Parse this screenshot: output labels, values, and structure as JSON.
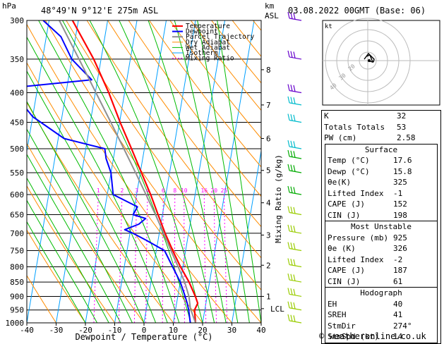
{
  "header": {
    "hpa_label": "hPa",
    "location": "48°49'N  9°12'E  275m  ASL",
    "km_label": "km",
    "asl_label": "ASL",
    "datetime": "03.08.2022  00GMT  (Base: 06)"
  },
  "colors": {
    "temperature": "#ff0000",
    "dewpoint": "#0000ff",
    "parcel": "#909090",
    "dry_adiabat": "#ff8c00",
    "wet_adiabat": "#00bb00",
    "isotherm": "#00a0ff",
    "mixing_ratio": "#ff00ff"
  },
  "legend": [
    "Temperature",
    "Dewpoint",
    "Parcel Trajectory",
    "Dry Adiabat",
    "Wet Adiabat",
    "Isotherm",
    "Mixing Ratio"
  ],
  "chart_data": {
    "type": "line",
    "xlabel": "Dewpoint / Temperature (°C)",
    "ylabel": "Mixing Ratio (g/kg)",
    "xlim": [
      -40,
      40
    ],
    "ylim": [
      1000,
      300
    ],
    "x_ticks": [
      "-40",
      "-30",
      "-20",
      "-10",
      "0",
      "10",
      "20",
      "30",
      "40"
    ],
    "pressure_levels": [
      300,
      350,
      400,
      450,
      500,
      550,
      600,
      650,
      700,
      750,
      800,
      850,
      900,
      950,
      1000
    ],
    "pressure_labels": [
      "300",
      "350",
      "400",
      "450",
      "500",
      "550",
      "600",
      "650",
      "700",
      "750",
      "800",
      "850",
      "900",
      "950",
      "1000"
    ],
    "km_ticks": [
      {
        "p": 900,
        "label": "1"
      },
      {
        "p": 795,
        "label": "2"
      },
      {
        "p": 705,
        "label": "3"
      },
      {
        "p": 620,
        "label": "4"
      },
      {
        "p": 545,
        "label": "5"
      },
      {
        "p": 480,
        "label": "6"
      },
      {
        "p": 420,
        "label": "7"
      },
      {
        "p": 365,
        "label": "8"
      }
    ],
    "lcl": {
      "p": 945,
      "label": "LCL"
    },
    "mixing_ratio_labels": [
      {
        "w": 1,
        "label": "1"
      },
      {
        "w": 2,
        "label": "2"
      },
      {
        "w": 3,
        "label": "3"
      },
      {
        "w": 4,
        "label": "4"
      },
      {
        "w": 6,
        "label": "6"
      },
      {
        "w": 8,
        "label": "8"
      },
      {
        "w": 10,
        "label": "10"
      },
      {
        "w": 16,
        "label": "16"
      },
      {
        "w": 20,
        "label": "20"
      },
      {
        "w": 25,
        "label": "25"
      }
    ],
    "series": [
      {
        "name": "Temperature",
        "points": [
          [
            1000,
            17.6
          ],
          [
            950,
            16.5
          ],
          [
            925,
            17.2
          ],
          [
            900,
            16.0
          ],
          [
            850,
            13.0
          ],
          [
            800,
            9.2
          ],
          [
            750,
            5.6
          ],
          [
            700,
            2.0
          ],
          [
            650,
            -1.5
          ],
          [
            600,
            -5.2
          ],
          [
            550,
            -9.6
          ],
          [
            500,
            -14.4
          ],
          [
            450,
            -19.8
          ],
          [
            400,
            -25.4
          ],
          [
            350,
            -32.5
          ],
          [
            300,
            -42.0
          ]
        ]
      },
      {
        "name": "Dewpoint",
        "points": [
          [
            1000,
            15.8
          ],
          [
            950,
            14.5
          ],
          [
            925,
            13.6
          ],
          [
            900,
            12.5
          ],
          [
            850,
            10.0
          ],
          [
            800,
            6.5
          ],
          [
            750,
            2.8
          ],
          [
            720,
            -4.0
          ],
          [
            700,
            -9.0
          ],
          [
            690,
            -12.0
          ],
          [
            675,
            -7.5
          ],
          [
            660,
            -5.5
          ],
          [
            650,
            -10.0
          ],
          [
            630,
            -9.0
          ],
          [
            600,
            -18.0
          ],
          [
            550,
            -20.0
          ],
          [
            520,
            -22.5
          ],
          [
            500,
            -23.5
          ],
          [
            480,
            -38.0
          ],
          [
            440,
            -50.0
          ],
          [
            400,
            -58.0
          ],
          [
            390,
            -54.0
          ],
          [
            380,
            -32.0
          ],
          [
            350,
            -40.0
          ],
          [
            320,
            -45.0
          ],
          [
            300,
            -52.0
          ]
        ]
      },
      {
        "name": "Parcel Trajectory",
        "points": [
          [
            1000,
            17.6
          ],
          [
            945,
            15.0
          ],
          [
            900,
            13.8
          ],
          [
            850,
            11.5
          ],
          [
            800,
            8.4
          ],
          [
            750,
            5.0
          ],
          [
            700,
            1.5
          ],
          [
            650,
            -2.4
          ],
          [
            600,
            -6.8
          ],
          [
            550,
            -11.6
          ],
          [
            500,
            -17.0
          ],
          [
            450,
            -23.0
          ],
          [
            400,
            -29.8
          ],
          [
            350,
            -37.5
          ],
          [
            300,
            -46.5
          ]
        ]
      }
    ]
  },
  "hodograph": {
    "label": "kt",
    "ring_labels": [
      "40",
      "30",
      "20"
    ]
  },
  "indices": [
    {
      "label": "K",
      "value": "32"
    },
    {
      "label": "Totals Totals",
      "value": "53"
    },
    {
      "label": "PW (cm)",
      "value": "2.58"
    }
  ],
  "surface": {
    "title": "Surface",
    "rows": [
      {
        "label": "Temp (°C)",
        "value": "17.6"
      },
      {
        "label": "Dewp (°C)",
        "value": "15.8"
      },
      {
        "label": "θe(K)",
        "value": "325"
      },
      {
        "label": "Lifted Index",
        "value": "-1"
      },
      {
        "label": "CAPE (J)",
        "value": "152"
      },
      {
        "label": "CIN (J)",
        "value": "198"
      }
    ]
  },
  "most_unstable": {
    "title": "Most Unstable",
    "rows": [
      {
        "label": "Pressure (mb)",
        "value": "925"
      },
      {
        "label": "θe (K)",
        "value": "326"
      },
      {
        "label": "Lifted Index",
        "value": "-2"
      },
      {
        "label": "CAPE (J)",
        "value": "187"
      },
      {
        "label": "CIN (J)",
        "value": "61"
      }
    ]
  },
  "hodograph_stats": {
    "title": "Hodograph",
    "rows": [
      {
        "label": "EH",
        "value": "40"
      },
      {
        "label": "SREH",
        "value": "41"
      },
      {
        "label": "StmDir",
        "value": "274°"
      },
      {
        "label": "StmSpd (kt)",
        "value": "14"
      }
    ]
  },
  "footer": {
    "copyright": "© weatheronline.co.uk"
  }
}
